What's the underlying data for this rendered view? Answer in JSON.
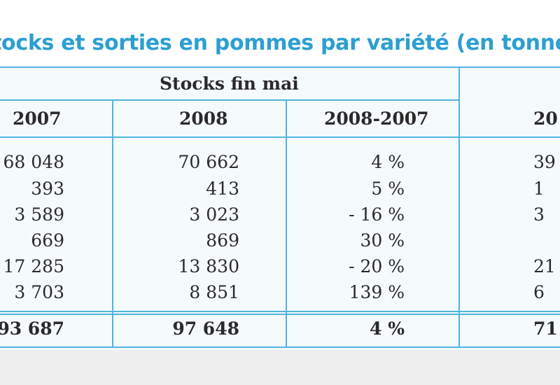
{
  "title": "tocks et sorties en pommes par variété (en tonne)",
  "header": {
    "group_label": "Stocks fin mai",
    "col_2007": "2007",
    "col_2008": "2008",
    "col_diff": "2008-2007",
    "col_next": "20"
  },
  "rows": [
    {
      "v2007": "68 048",
      "v2008": "70 662",
      "diff": "4 %",
      "next": "39"
    },
    {
      "v2007": "393",
      "v2008": "413",
      "diff": "5 %",
      "next": "1"
    },
    {
      "v2007": "3 589",
      "v2008": "3 023",
      "diff": "- 16 %",
      "next": "3"
    },
    {
      "v2007": "669",
      "v2008": "869",
      "diff": "30 %",
      "next": ""
    },
    {
      "v2007": "17 285",
      "v2008": "13 830",
      "diff": "- 20 %",
      "next": "21"
    },
    {
      "v2007": "3 703",
      "v2008": "8 851",
      "diff": "139 %",
      "next": "6"
    }
  ],
  "total": {
    "v2007": "93 687",
    "v2008": "97 648",
    "diff": "4 %",
    "next": "71"
  }
}
